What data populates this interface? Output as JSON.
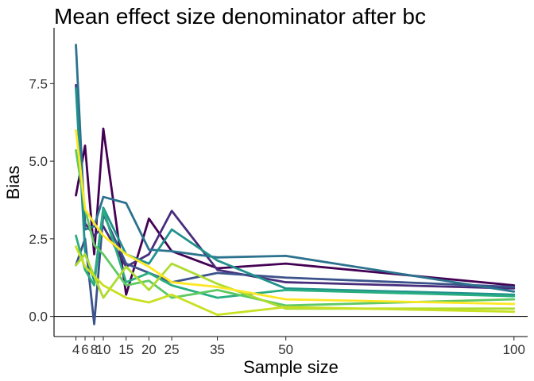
{
  "chart_data": {
    "type": "line",
    "title": "Mean effect size denominator after bc",
    "xlabel": "Sample size",
    "ylabel": "Bias",
    "xlim": [
      -0.8,
      103
    ],
    "ylim": [
      -0.65,
      9.3
    ],
    "x": [
      4,
      6,
      8,
      10,
      15,
      20,
      25,
      35,
      50,
      100
    ],
    "xticks": [
      4,
      6,
      8,
      10,
      15,
      20,
      25,
      35,
      50,
      100
    ],
    "xtick_labels": [
      "4",
      "6",
      "8",
      "10",
      "15",
      "20",
      "25",
      "35",
      "50",
      "100"
    ],
    "yticks": [
      0,
      2.5,
      5,
      7.5
    ],
    "ytick_labels": [
      "0.0",
      "2.5",
      "5.0",
      "7.5"
    ],
    "hline": 0,
    "grid": false,
    "legend": "none",
    "series": [
      {
        "color": "#440154",
        "values": [
          3.9,
          5.5,
          2.0,
          6.05,
          0.7,
          3.15,
          2.1,
          1.55,
          1.7,
          1.0
        ]
      },
      {
        "color": "#472d7b",
        "values": [
          7.45,
          3.0,
          2.6,
          2.9,
          1.6,
          2.0,
          3.4,
          1.5,
          1.1,
          0.9
        ]
      },
      {
        "color": "#3b528b",
        "values": [
          1.65,
          2.5,
          -0.25,
          3.3,
          1.7,
          1.4,
          1.1,
          1.4,
          1.25,
          0.95
        ]
      },
      {
        "color": "#2c728e",
        "values": [
          8.75,
          2.8,
          2.9,
          3.85,
          3.65,
          2.15,
          2.1,
          1.9,
          1.95,
          0.8
        ]
      },
      {
        "color": "#21918c",
        "values": [
          7.35,
          2.1,
          1.15,
          3.5,
          2.0,
          1.7,
          2.8,
          1.8,
          0.9,
          0.7
        ]
      },
      {
        "color": "#28ae80",
        "values": [
          2.6,
          1.5,
          1.0,
          3.45,
          1.1,
          1.4,
          1.0,
          0.6,
          0.85,
          0.65
        ]
      },
      {
        "color": "#5ec962",
        "values": [
          5.35,
          3.45,
          2.3,
          2.0,
          1.0,
          1.15,
          0.6,
          0.85,
          0.35,
          0.55
        ]
      },
      {
        "color": "#addc30",
        "values": [
          1.65,
          2.0,
          1.3,
          0.6,
          1.6,
          0.85,
          1.7,
          1.05,
          0.25,
          0.25
        ]
      },
      {
        "color": "#c8e020",
        "values": [
          2.25,
          1.6,
          1.3,
          1.0,
          0.6,
          0.45,
          0.7,
          0.05,
          0.3,
          0.15
        ]
      },
      {
        "color": "#fde725",
        "values": [
          6.0,
          3.45,
          3.0,
          2.6,
          2.0,
          1.6,
          1.1,
          0.95,
          0.55,
          0.4
        ]
      }
    ]
  }
}
